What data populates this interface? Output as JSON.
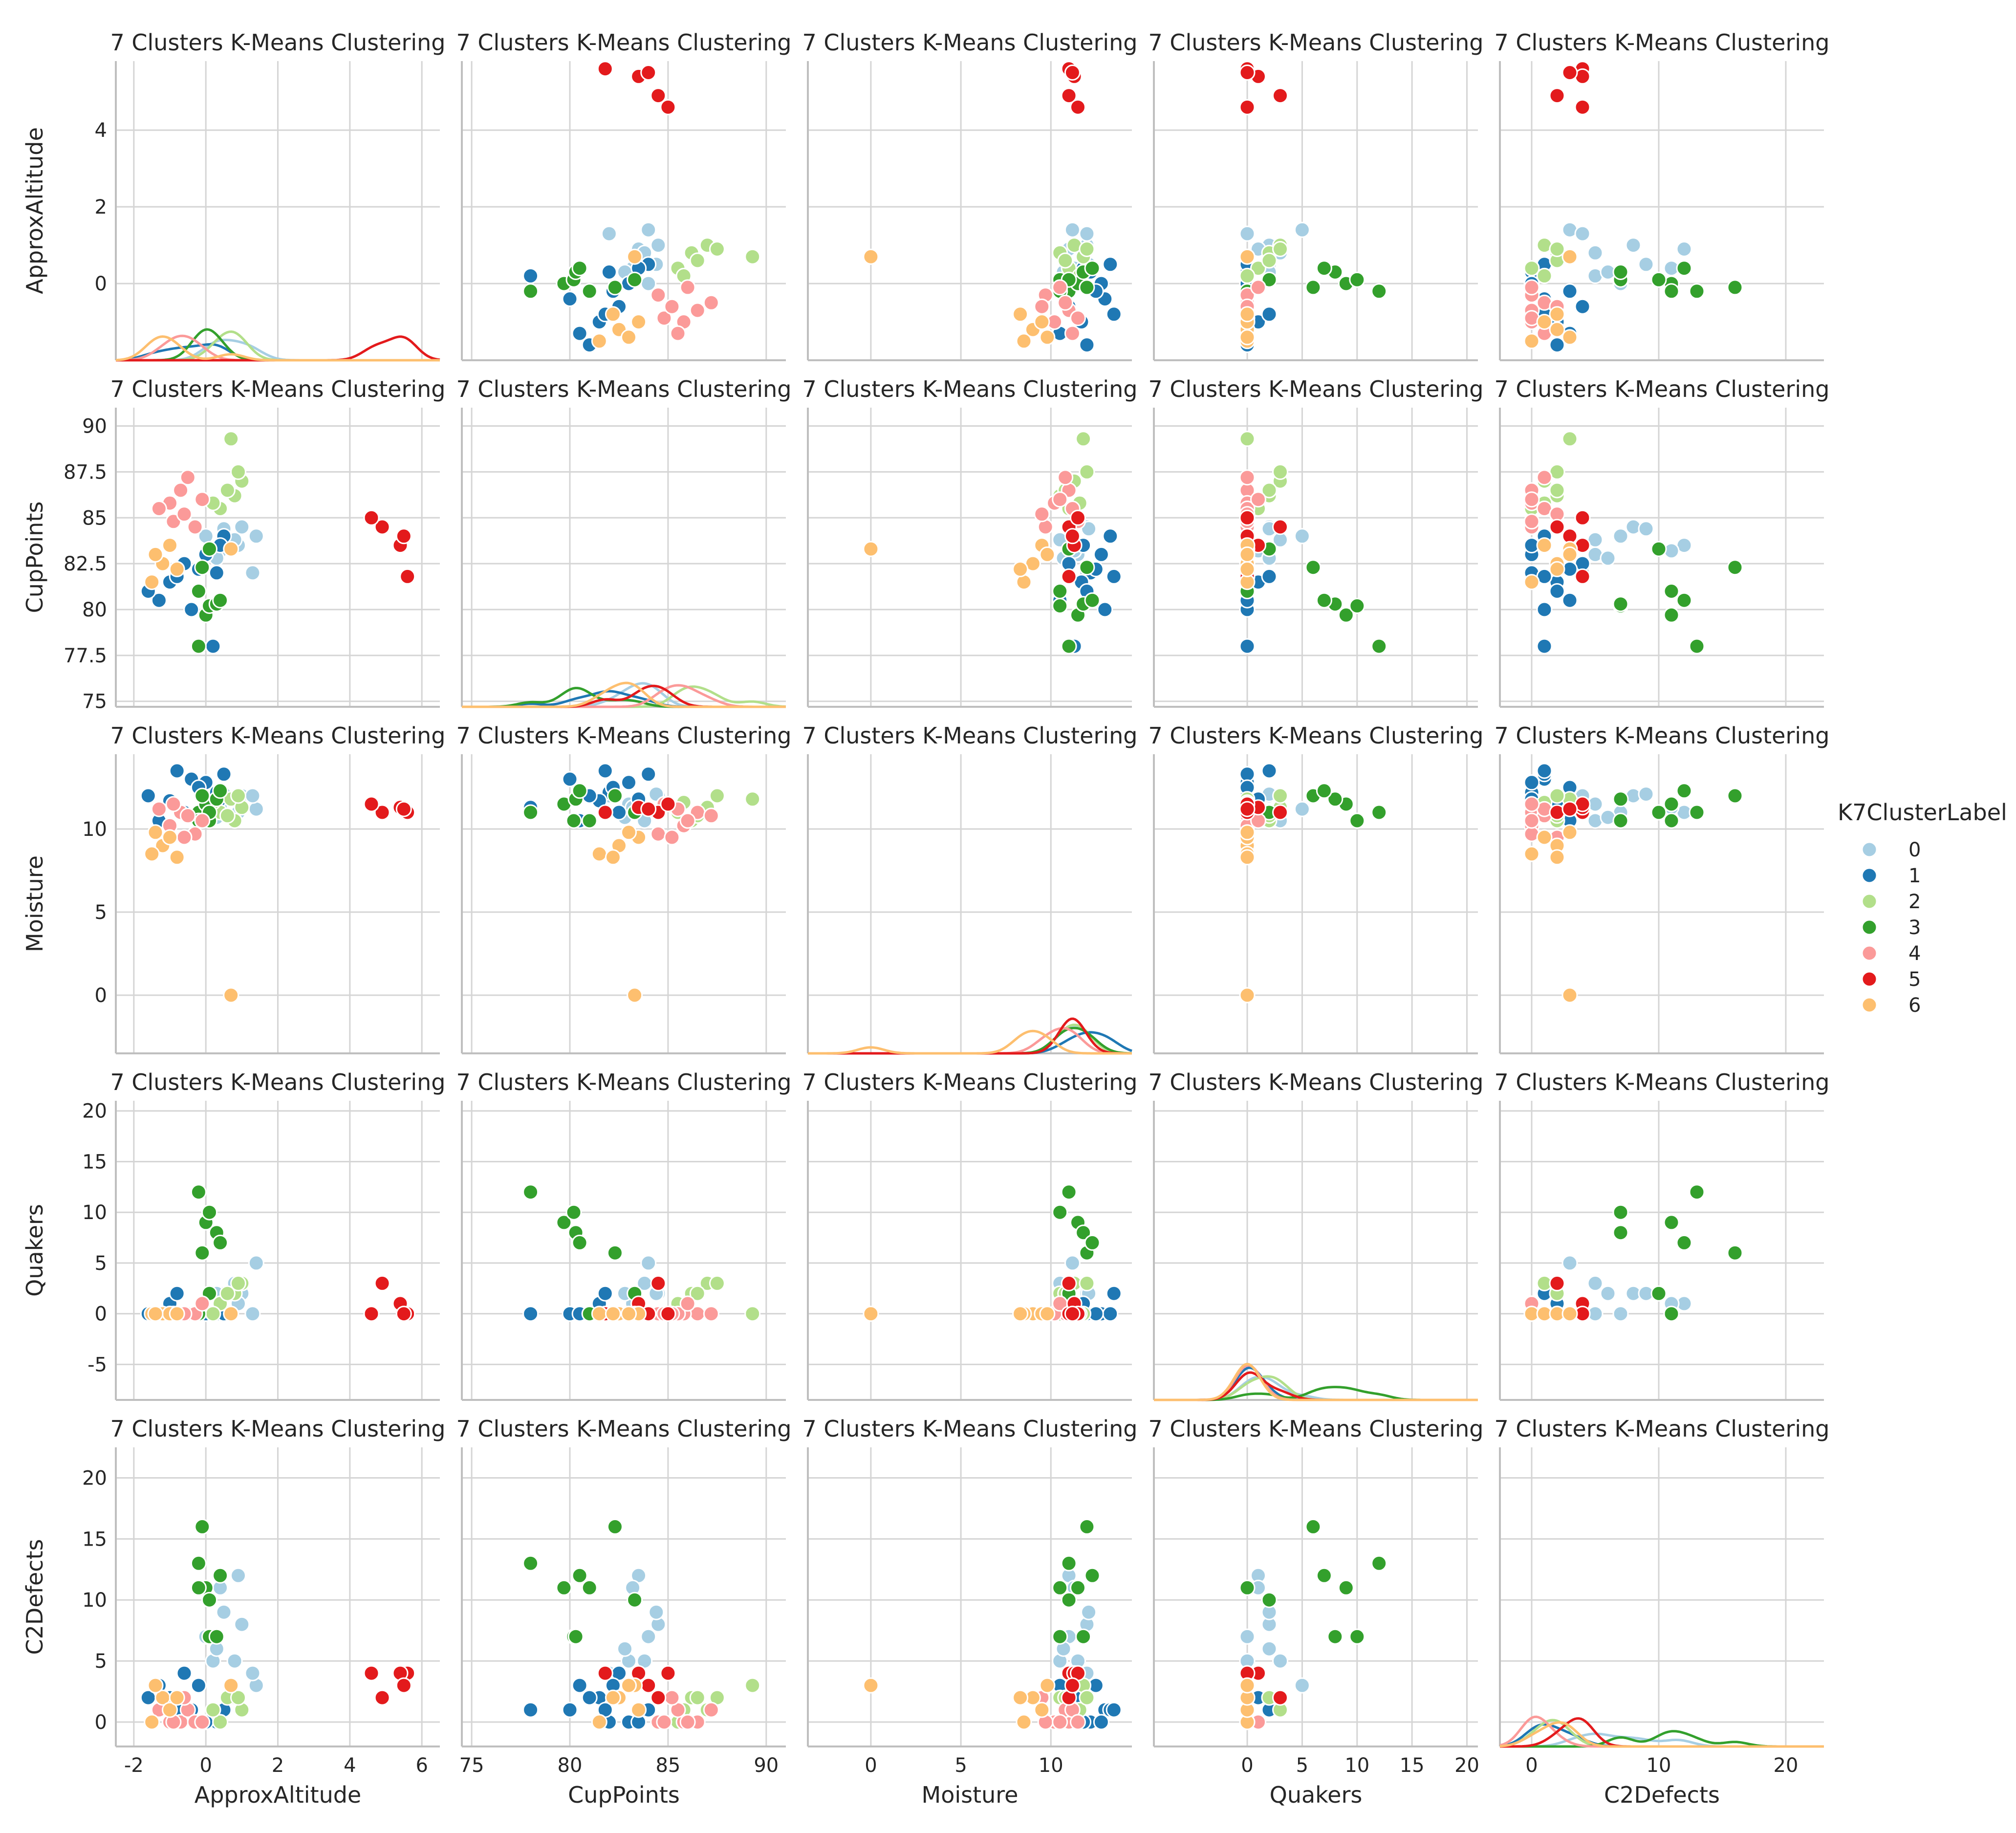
{
  "figure": {
    "panel_title": "7 Clusters K-Means Clustering",
    "variables": [
      "ApproxAltitude",
      "CupPoints",
      "Moisture",
      "Quakers",
      "C2Defects"
    ],
    "legend": {
      "title": "K7ClusterLabel",
      "labels": [
        "0",
        "1",
        "2",
        "3",
        "4",
        "5",
        "6"
      ],
      "colors": [
        "#a6cee3",
        "#1f78b4",
        "#b2df8a",
        "#33a02c",
        "#fb9a99",
        "#e31a1c",
        "#fdbf6f"
      ]
    }
  },
  "chart_data": {
    "type": "scatter",
    "grid": true,
    "legend_position": "right",
    "title": "7 Clusters K-Means Clustering",
    "axes": {
      "ApproxAltitude": {
        "lim": [
          -2.5,
          6.5
        ],
        "ticks": [
          -2,
          0,
          2,
          4,
          6
        ],
        "row_lim": [
          -2.0,
          5.8
        ],
        "row_ticks": [
          0,
          2,
          4
        ]
      },
      "CupPoints": {
        "lim": [
          74.5,
          91.0
        ],
        "ticks": [
          75,
          80,
          85,
          90
        ],
        "row_lim": [
          74.7,
          91.0
        ],
        "row_ticks": [
          75.0,
          77.5,
          80.0,
          82.5,
          85.0,
          87.5,
          90.0
        ]
      },
      "Moisture": {
        "lim": [
          -3.5,
          14.5
        ],
        "ticks": [
          0,
          5,
          10
        ],
        "row_lim": [
          -3.5,
          14.5
        ],
        "row_ticks": [
          0,
          5,
          10
        ]
      },
      "Quakers": {
        "lim": [
          -8.5,
          21.0
        ],
        "ticks": [
          0,
          5,
          10,
          15,
          20
        ],
        "row_lim": [
          -8.5,
          21.0
        ],
        "row_ticks": [
          -5,
          0,
          5,
          10,
          15,
          20
        ]
      },
      "C2Defects": {
        "lim": [
          -2.5,
          23.0
        ],
        "ticks": [
          0,
          10,
          20
        ],
        "row_lim": [
          -2.0,
          22.5
        ],
        "row_ticks": [
          0,
          5,
          10,
          15,
          20
        ]
      }
    },
    "series": [
      {
        "name": "0",
        "points": [
          {
            "ApproxAltitude": 0.2,
            "CupPoints": 83.0,
            "Moisture": 11.5,
            "Quakers": 0,
            "C2Defects": 5
          },
          {
            "ApproxAltitude": 1.4,
            "CupPoints": 84.0,
            "Moisture": 11.2,
            "Quakers": 5,
            "C2Defects": 3
          },
          {
            "ApproxAltitude": 1.0,
            "CupPoints": 84.5,
            "Moisture": 12.0,
            "Quakers": 2,
            "C2Defects": 8
          },
          {
            "ApproxAltitude": 0.9,
            "CupPoints": 83.5,
            "Moisture": 11.0,
            "Quakers": 1,
            "C2Defects": 12
          },
          {
            "ApproxAltitude": 1.3,
            "CupPoints": 82.0,
            "Moisture": 12.0,
            "Quakers": 0,
            "C2Defects": 4
          },
          {
            "ApproxAltitude": 0.5,
            "CupPoints": 84.4,
            "Moisture": 12.1,
            "Quakers": 2,
            "C2Defects": 9
          },
          {
            "ApproxAltitude": 0.4,
            "CupPoints": 83.2,
            "Moisture": 11.3,
            "Quakers": 1,
            "C2Defects": 11
          },
          {
            "ApproxAltitude": 0.0,
            "CupPoints": 84.0,
            "Moisture": 11.0,
            "Quakers": 0,
            "C2Defects": 7
          },
          {
            "ApproxAltitude": 0.8,
            "CupPoints": 83.8,
            "Moisture": 10.5,
            "Quakers": 3,
            "C2Defects": 5
          },
          {
            "ApproxAltitude": 0.3,
            "CupPoints": 82.8,
            "Moisture": 10.7,
            "Quakers": 2,
            "C2Defects": 6
          }
        ]
      },
      {
        "name": "1",
        "points": [
          {
            "ApproxAltitude": -0.4,
            "CupPoints": 80.0,
            "Moisture": 13.0,
            "Quakers": 0,
            "C2Defects": 1
          },
          {
            "ApproxAltitude": 0.3,
            "CupPoints": 82.0,
            "Moisture": 12.2,
            "Quakers": 0,
            "C2Defects": 0
          },
          {
            "ApproxAltitude": -1.0,
            "CupPoints": 81.5,
            "Moisture": 11.7,
            "Quakers": 1,
            "C2Defects": 2
          },
          {
            "ApproxAltitude": 0.0,
            "CupPoints": 83.0,
            "Moisture": 12.8,
            "Quakers": 0,
            "C2Defects": 0
          },
          {
            "ApproxAltitude": -0.6,
            "CupPoints": 82.5,
            "Moisture": 11.0,
            "Quakers": 0,
            "C2Defects": 4
          },
          {
            "ApproxAltitude": 0.5,
            "CupPoints": 84.0,
            "Moisture": 13.3,
            "Quakers": 0,
            "C2Defects": 1
          },
          {
            "ApproxAltitude": -1.3,
            "CupPoints": 80.5,
            "Moisture": 10.5,
            "Quakers": 0,
            "C2Defects": 3
          },
          {
            "ApproxAltitude": 0.2,
            "CupPoints": 78.0,
            "Moisture": 11.3,
            "Quakers": 0,
            "C2Defects": 1
          },
          {
            "ApproxAltitude": -1.6,
            "CupPoints": 81.0,
            "Moisture": 12.0,
            "Quakers": 0,
            "C2Defects": 2
          },
          {
            "ApproxAltitude": 0.4,
            "CupPoints": 83.5,
            "Moisture": 11.8,
            "Quakers": 1,
            "C2Defects": 0
          },
          {
            "ApproxAltitude": -0.2,
            "CupPoints": 82.2,
            "Moisture": 12.5,
            "Quakers": 0,
            "C2Defects": 3
          },
          {
            "ApproxAltitude": -0.8,
            "CupPoints": 81.8,
            "Moisture": 13.5,
            "Quakers": 2,
            "C2Defects": 1
          }
        ]
      },
      {
        "name": "2",
        "points": [
          {
            "ApproxAltitude": 0.7,
            "CupPoints": 89.3,
            "Moisture": 11.8,
            "Quakers": 0,
            "C2Defects": 3
          },
          {
            "ApproxAltitude": 1.0,
            "CupPoints": 87.0,
            "Moisture": 11.3,
            "Quakers": 3,
            "C2Defects": 1
          },
          {
            "ApproxAltitude": 0.8,
            "CupPoints": 86.2,
            "Moisture": 10.5,
            "Quakers": 2,
            "C2Defects": 2
          },
          {
            "ApproxAltitude": 0.4,
            "CupPoints": 85.5,
            "Moisture": 11.0,
            "Quakers": 1,
            "C2Defects": 0
          },
          {
            "ApproxAltitude": 0.6,
            "CupPoints": 86.5,
            "Moisture": 10.8,
            "Quakers": 2,
            "C2Defects": 2
          },
          {
            "ApproxAltitude": 0.2,
            "CupPoints": 85.8,
            "Moisture": 11.6,
            "Quakers": 0,
            "C2Defects": 1
          },
          {
            "ApproxAltitude": 0.9,
            "CupPoints": 87.5,
            "Moisture": 12.0,
            "Quakers": 3,
            "C2Defects": 2
          }
        ]
      },
      {
        "name": "3",
        "points": [
          {
            "ApproxAltitude": -0.2,
            "CupPoints": 78.0,
            "Moisture": 11.0,
            "Quakers": 12,
            "C2Defects": 13
          },
          {
            "ApproxAltitude": 0.0,
            "CupPoints": 79.7,
            "Moisture": 11.5,
            "Quakers": 9,
            "C2Defects": 11
          },
          {
            "ApproxAltitude": 0.1,
            "CupPoints": 80.2,
            "Moisture": 10.5,
            "Quakers": 10,
            "C2Defects": 7
          },
          {
            "ApproxAltitude": 0.3,
            "CupPoints": 80.3,
            "Moisture": 11.8,
            "Quakers": 8,
            "C2Defects": 7
          },
          {
            "ApproxAltitude": -0.1,
            "CupPoints": 82.3,
            "Moisture": 12.0,
            "Quakers": 6,
            "C2Defects": 16
          },
          {
            "ApproxAltitude": 0.4,
            "CupPoints": 80.5,
            "Moisture": 12.3,
            "Quakers": 7,
            "C2Defects": 12
          },
          {
            "ApproxAltitude": -0.2,
            "CupPoints": 81.0,
            "Moisture": 10.5,
            "Quakers": 0,
            "C2Defects": 11
          },
          {
            "ApproxAltitude": 0.1,
            "CupPoints": 83.3,
            "Moisture": 11.0,
            "Quakers": 2,
            "C2Defects": 10
          }
        ]
      },
      {
        "name": "4",
        "points": [
          {
            "ApproxAltitude": -0.7,
            "CupPoints": 86.5,
            "Moisture": 11.0,
            "Quakers": 0,
            "C2Defects": 0
          },
          {
            "ApproxAltitude": -0.5,
            "CupPoints": 87.2,
            "Moisture": 10.8,
            "Quakers": 0,
            "C2Defects": 1
          },
          {
            "ApproxAltitude": -1.0,
            "CupPoints": 85.8,
            "Moisture": 10.2,
            "Quakers": 0,
            "C2Defects": 0
          },
          {
            "ApproxAltitude": -0.3,
            "CupPoints": 84.5,
            "Moisture": 9.7,
            "Quakers": 0,
            "C2Defects": 0
          },
          {
            "ApproxAltitude": -1.3,
            "CupPoints": 85.5,
            "Moisture": 11.2,
            "Quakers": 0,
            "C2Defects": 1
          },
          {
            "ApproxAltitude": -0.1,
            "CupPoints": 86.0,
            "Moisture": 10.5,
            "Quakers": 1,
            "C2Defects": 0
          },
          {
            "ApproxAltitude": -0.9,
            "CupPoints": 84.8,
            "Moisture": 11.5,
            "Quakers": 0,
            "C2Defects": 0
          },
          {
            "ApproxAltitude": -0.6,
            "CupPoints": 85.2,
            "Moisture": 9.5,
            "Quakers": 0,
            "C2Defects": 2
          }
        ]
      },
      {
        "name": "5",
        "points": [
          {
            "ApproxAltitude": 5.6,
            "CupPoints": 81.8,
            "Moisture": 11.0,
            "Quakers": 0,
            "C2Defects": 4
          },
          {
            "ApproxAltitude": 5.4,
            "CupPoints": 83.5,
            "Moisture": 11.3,
            "Quakers": 1,
            "C2Defects": 4
          },
          {
            "ApproxAltitude": 4.9,
            "CupPoints": 84.5,
            "Moisture": 11.0,
            "Quakers": 3,
            "C2Defects": 2
          },
          {
            "ApproxAltitude": 4.6,
            "CupPoints": 85.0,
            "Moisture": 11.5,
            "Quakers": 0,
            "C2Defects": 4
          },
          {
            "ApproxAltitude": 5.5,
            "CupPoints": 84.0,
            "Moisture": 11.2,
            "Quakers": 0,
            "C2Defects": 3
          }
        ]
      },
      {
        "name": "6",
        "points": [
          {
            "ApproxAltitude": 0.7,
            "CupPoints": 83.3,
            "Moisture": 0.0,
            "Quakers": 0,
            "C2Defects": 3
          },
          {
            "ApproxAltitude": -1.2,
            "CupPoints": 82.5,
            "Moisture": 9.0,
            "Quakers": 0,
            "C2Defects": 2
          },
          {
            "ApproxAltitude": -1.5,
            "CupPoints": 81.5,
            "Moisture": 8.5,
            "Quakers": 0,
            "C2Defects": 0
          },
          {
            "ApproxAltitude": -1.0,
            "CupPoints": 83.5,
            "Moisture": 9.5,
            "Quakers": 0,
            "C2Defects": 1
          },
          {
            "ApproxAltitude": -0.8,
            "CupPoints": 82.2,
            "Moisture": 8.3,
            "Quakers": 0,
            "C2Defects": 2
          },
          {
            "ApproxAltitude": -1.4,
            "CupPoints": 83.0,
            "Moisture": 9.8,
            "Quakers": 0,
            "C2Defects": 3
          }
        ]
      }
    ]
  }
}
